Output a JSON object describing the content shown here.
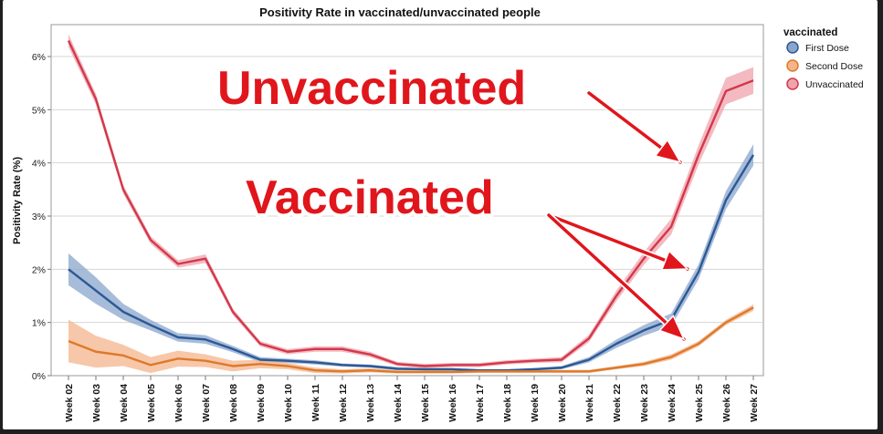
{
  "chart_data": {
    "type": "line",
    "title": "Positivity Rate in vaccinated/unvaccinated people",
    "ylabel": "Positivity Rate (%)",
    "xlabel": "",
    "ylim": [
      0,
      6.6
    ],
    "yticks": [
      "0%",
      "1%",
      "2%",
      "3%",
      "4%",
      "5%",
      "6%"
    ],
    "categories": [
      "Week 02",
      "Week 03",
      "Week 04",
      "Week 05",
      "Week 06",
      "Week 07",
      "Week 08",
      "Week 09",
      "Week 10",
      "Week 11",
      "Week 12",
      "Week 13",
      "Week 14",
      "Week 15",
      "Week 16",
      "Week 17",
      "Week 18",
      "Week 19",
      "Week 20",
      "Week 21",
      "Week 22",
      "Week 23",
      "Week 24",
      "Week 25",
      "Week 26",
      "Week 27"
    ],
    "legend": {
      "title": "vaccinated",
      "placement": "right"
    },
    "grid": true,
    "series": [
      {
        "name": "First Dose",
        "color": "#2c5896",
        "band_color": "#8aa6cc",
        "values": [
          2.0,
          1.6,
          1.2,
          0.95,
          0.72,
          0.68,
          0.5,
          0.3,
          0.28,
          0.25,
          0.2,
          0.18,
          0.13,
          0.12,
          0.12,
          0.1,
          0.1,
          0.12,
          0.15,
          0.3,
          0.6,
          0.85,
          1.05,
          1.95,
          3.3,
          4.15
        ],
        "band": [
          0.3,
          0.25,
          0.15,
          0.1,
          0.08,
          0.08,
          0.06,
          0.05,
          0.04,
          0.04,
          0.03,
          0.03,
          0.03,
          0.02,
          0.02,
          0.02,
          0.02,
          0.02,
          0.03,
          0.05,
          0.08,
          0.1,
          0.12,
          0.14,
          0.17,
          0.2
        ]
      },
      {
        "name": "Second Dose",
        "color": "#dd7a2a",
        "band_color": "#f4b48c",
        "values": [
          0.65,
          0.45,
          0.38,
          0.2,
          0.32,
          0.28,
          0.18,
          0.22,
          0.18,
          0.1,
          0.08,
          0.1,
          0.07,
          0.07,
          0.07,
          0.08,
          0.08,
          0.08,
          0.08,
          0.08,
          0.15,
          0.22,
          0.35,
          0.6,
          1.0,
          1.28
        ],
        "band": [
          0.4,
          0.3,
          0.2,
          0.15,
          0.15,
          0.12,
          0.1,
          0.08,
          0.06,
          0.05,
          0.04,
          0.04,
          0.03,
          0.03,
          0.03,
          0.03,
          0.03,
          0.03,
          0.03,
          0.03,
          0.03,
          0.04,
          0.05,
          0.05,
          0.05,
          0.06
        ]
      },
      {
        "name": "Unvaccinated",
        "color": "#d3384a",
        "band_color": "#efa3ad",
        "values": [
          6.3,
          5.2,
          3.5,
          2.55,
          2.1,
          2.2,
          1.2,
          0.6,
          0.45,
          0.5,
          0.5,
          0.4,
          0.22,
          0.18,
          0.2,
          0.2,
          0.25,
          0.28,
          0.3,
          0.7,
          1.5,
          2.2,
          2.8,
          4.15,
          5.35,
          5.55
        ],
        "band": [
          0.12,
          0.1,
          0.08,
          0.07,
          0.07,
          0.08,
          0.06,
          0.05,
          0.05,
          0.05,
          0.05,
          0.05,
          0.04,
          0.04,
          0.04,
          0.04,
          0.04,
          0.04,
          0.05,
          0.07,
          0.1,
          0.12,
          0.15,
          0.18,
          0.25,
          0.25
        ]
      }
    ],
    "annotations": {
      "unvaccinated_text": "Unvaccinated",
      "vaccinated_text": "Vaccinated",
      "arrow_color": "#e0161c"
    }
  }
}
